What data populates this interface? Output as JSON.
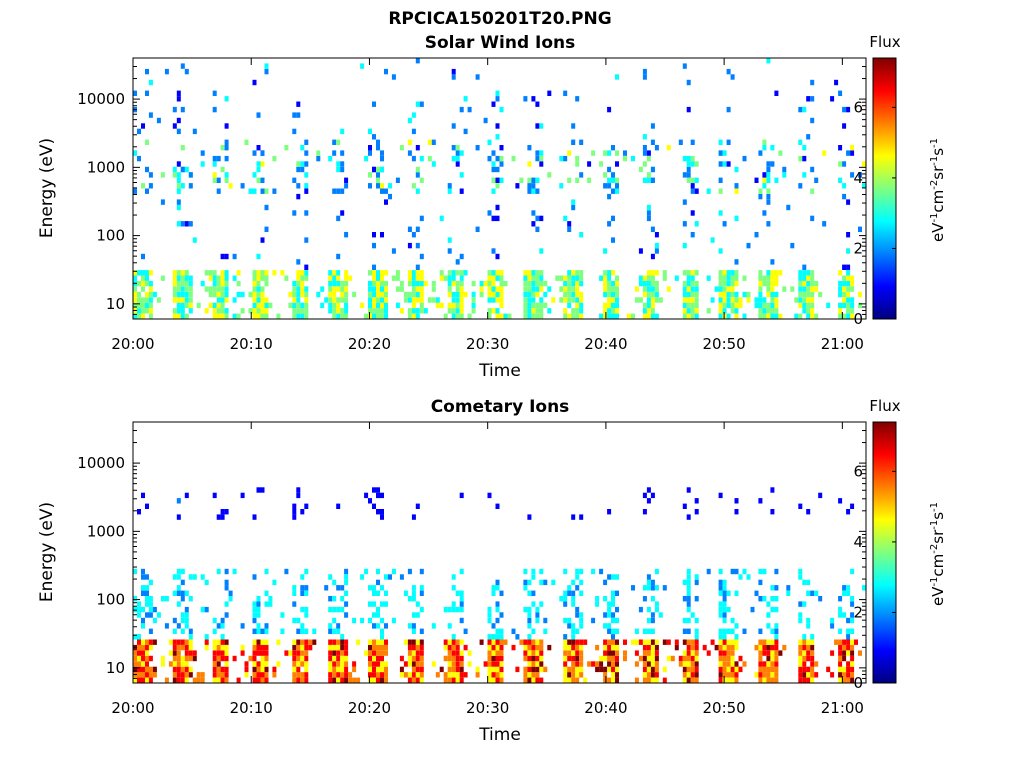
{
  "figure": {
    "title": "RPCICA150201T20.PNG"
  },
  "colormap": [
    "#00007f",
    "#0000ff",
    "#007fff",
    "#00ffff",
    "#7fff7f",
    "#ffff00",
    "#ff7f00",
    "#ff0000",
    "#7f0000"
  ],
  "chart_data": [
    {
      "type": "heatmap",
      "title": "Solar Wind Ions",
      "xlabel": "Time",
      "ylabel": "Energy (eV)",
      "x_ticks": [
        "20:00",
        "20:10",
        "20:20",
        "20:30",
        "20:40",
        "20:50",
        "21:00"
      ],
      "x_range_minutes_after_20_00": [
        0,
        62
      ],
      "y_scale": "log",
      "y_ticks": [
        "10",
        "100",
        "1000",
        "10000"
      ],
      "y_range": [
        6,
        40000
      ],
      "colorbar": {
        "title": "Flux",
        "unit": "eV⁻¹cm⁻²sr⁻¹s⁻¹",
        "ticks": [
          "0",
          "2",
          "4",
          "6"
        ],
        "range": [
          0,
          7.4
        ]
      },
      "bands": [
        {
          "e_min": 6,
          "e_max": 30,
          "flux_min": 2.4,
          "flux_max": 5.0,
          "density": 0.9
        },
        {
          "e_min": 400,
          "e_max": 2500,
          "flux_min": 1.2,
          "flux_max": 4.4,
          "density": 0.22
        },
        {
          "e_min": 30,
          "e_max": 40000,
          "flux_min": 1.0,
          "flux_max": 2.6,
          "density": 0.07
        }
      ]
    },
    {
      "type": "heatmap",
      "title": "Cometary Ions",
      "xlabel": "Time",
      "ylabel": "Energy (eV)",
      "x_ticks": [
        "20:00",
        "20:10",
        "20:20",
        "20:30",
        "20:40",
        "20:50",
        "21:00"
      ],
      "x_range_minutes_after_20_00": [
        0,
        62
      ],
      "y_scale": "log",
      "y_ticks": [
        "10",
        "100",
        "1000",
        "10000"
      ],
      "y_range": [
        6,
        40000
      ],
      "colorbar": {
        "title": "Flux",
        "unit": "eV⁻¹cm⁻²sr⁻¹s⁻¹",
        "ticks": [
          "0",
          "2",
          "4",
          "6"
        ],
        "range": [
          0,
          7.4
        ]
      },
      "bands": [
        {
          "e_min": 6,
          "e_max": 28,
          "flux_min": 4.4,
          "flux_max": 7.2,
          "density": 0.95
        },
        {
          "e_min": 28,
          "e_max": 280,
          "flux_min": 2.0,
          "flux_max": 3.2,
          "density": 0.35
        },
        {
          "e_min": 1500,
          "e_max": 4500,
          "flux_min": 1.0,
          "flux_max": 1.4,
          "density": 0.1
        }
      ]
    }
  ]
}
